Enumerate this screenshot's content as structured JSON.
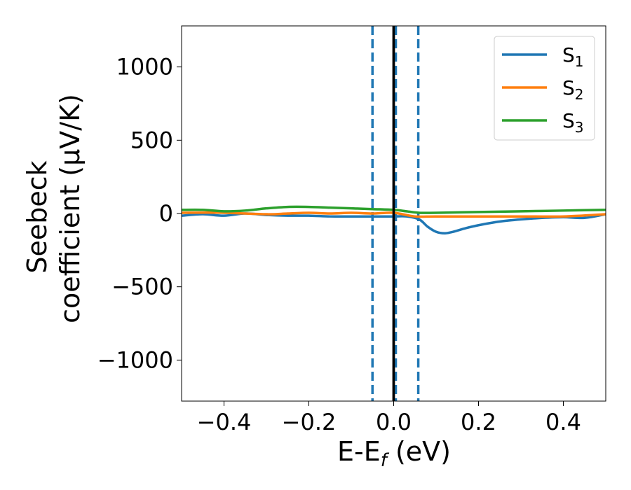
{
  "chart_data": {
    "type": "line",
    "title": "",
    "xlabel_main": "E-E",
    "xlabel_sub": "f",
    "xlabel_unit": " (eV)",
    "ylabel_line1": "Seebeck",
    "ylabel_line2": "coefficient  (μV/K)",
    "xlim": [
      -0.5,
      0.5
    ],
    "ylim": [
      -1280,
      1280
    ],
    "xticks": [
      -0.4,
      -0.2,
      0.0,
      0.2,
      0.4
    ],
    "xtick_labels": [
      "−0.4",
      "−0.2",
      "0.0",
      "0.2",
      "0.4"
    ],
    "yticks": [
      1000,
      500,
      0,
      -500,
      -1000
    ],
    "ytick_labels": [
      "1000",
      "500",
      "0",
      "−500",
      "−1000"
    ],
    "grid": false,
    "legend_position": "top-right",
    "series": [
      {
        "name": "S1",
        "label_main": "S",
        "label_sub": "1",
        "color": "#1f77b4",
        "x": [
          -0.5,
          -0.45,
          -0.4,
          -0.35,
          -0.3,
          -0.25,
          -0.2,
          -0.15,
          -0.1,
          -0.05,
          0.0,
          0.03,
          0.06,
          0.08,
          0.1,
          0.12,
          0.14,
          0.17,
          0.2,
          0.25,
          0.3,
          0.35,
          0.4,
          0.45,
          0.5
        ],
        "y": [
          -15,
          -5,
          -15,
          0,
          -10,
          -15,
          -15,
          -20,
          -20,
          -20,
          -20,
          -20,
          -40,
          -90,
          -125,
          -135,
          -125,
          -100,
          -80,
          -55,
          -40,
          -30,
          -25,
          -30,
          -5
        ]
      },
      {
        "name": "S2",
        "label_main": "S",
        "label_sub": "2",
        "color": "#ff7f0e",
        "x": [
          -0.5,
          -0.4,
          -0.3,
          -0.25,
          -0.2,
          -0.15,
          -0.1,
          -0.05,
          0.0,
          0.05,
          0.1,
          0.2,
          0.3,
          0.4,
          0.5
        ],
        "y": [
          5,
          5,
          -5,
          0,
          5,
          0,
          5,
          0,
          5,
          -20,
          -20,
          -20,
          -20,
          -20,
          -5
        ]
      },
      {
        "name": "S3",
        "label_main": "S",
        "label_sub": "3",
        "color": "#2ca02c",
        "x": [
          -0.5,
          -0.45,
          -0.4,
          -0.35,
          -0.3,
          -0.25,
          -0.2,
          -0.15,
          -0.1,
          -0.05,
          0.0,
          0.03,
          0.06,
          0.1,
          0.2,
          0.3,
          0.4,
          0.5
        ],
        "y": [
          25,
          25,
          15,
          20,
          35,
          45,
          45,
          40,
          35,
          30,
          25,
          15,
          5,
          5,
          10,
          15,
          20,
          25
        ]
      }
    ],
    "vertical_lines": [
      {
        "name": "fermi-line",
        "x": 0.0,
        "color": "#000000",
        "style": "solid"
      },
      {
        "name": "window-left-dashed-line",
        "x": -0.05,
        "color": "#1f77b4",
        "style": "dashed"
      },
      {
        "name": "window-right-dashed-line-a",
        "x": 0.005,
        "color": "#1f77b4",
        "style": "dashed"
      },
      {
        "name": "window-right-dashed-line-b",
        "x": 0.058,
        "color": "#1f77b4",
        "style": "dashed"
      }
    ]
  }
}
